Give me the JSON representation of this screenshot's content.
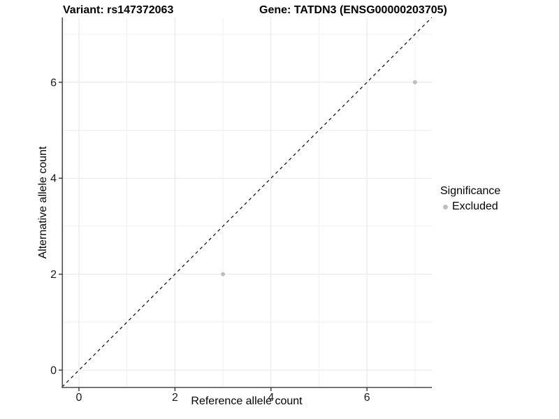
{
  "titles": {
    "variant": "Variant: rs147372063",
    "gene": "Gene: TATDN3 (ENSG00000203705)"
  },
  "chart_data": {
    "type": "scatter",
    "title": "Variant: rs147372063   Gene: TATDN3 (ENSG00000203705)",
    "xlabel": "Reference allele count",
    "ylabel": "Alternative allele count",
    "xlim": [
      -0.35,
      7.35
    ],
    "ylim": [
      -0.35,
      7.35
    ],
    "xticks": [
      0,
      2,
      4,
      6
    ],
    "yticks": [
      0,
      2,
      4,
      6
    ],
    "minor_gridlines_x": [
      1,
      3,
      5,
      7
    ],
    "minor_gridlines_y": [
      1,
      3,
      5,
      7
    ],
    "grid": true,
    "series": [
      {
        "name": "Excluded",
        "color": "#bebebe",
        "points": [
          [
            3,
            2
          ],
          [
            7,
            6
          ]
        ]
      }
    ],
    "abline": {
      "slope": 1,
      "intercept": 0,
      "style": "dashed",
      "color": "#000000"
    },
    "legend": {
      "position": "right",
      "title": "Significance",
      "entries": [
        {
          "label": "Excluded",
          "color": "#bebebe"
        }
      ]
    },
    "colors": {
      "background": "#ffffff",
      "grid_major": "#e6e6e6",
      "grid_minor": "#f0f0f0",
      "axis_line": "#4d4d4d",
      "tick_mark": "#333333",
      "tick_label": "#1a1a1a",
      "point": "#bebebe"
    }
  }
}
